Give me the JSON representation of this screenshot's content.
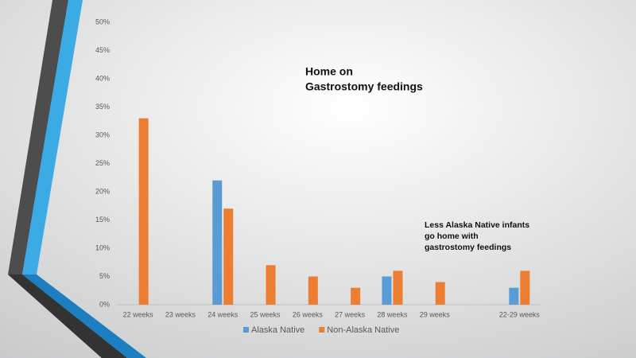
{
  "chart_data": {
    "type": "bar",
    "title": [
      "Home on",
      "Gastrostomy feedings"
    ],
    "annotation": [
      "Less Alaska Native infants",
      "go home with",
      "gastrostomy feedings"
    ],
    "categories": [
      "22 weeks",
      "23 weeks",
      "24 weeks",
      "25 weeks",
      "26 weeks",
      "27 weeks",
      "28 weeks",
      "29 weeks",
      null,
      "22-29 weeks"
    ],
    "series": [
      {
        "name": "Alaska Native",
        "color": "#5b9bd5",
        "values": [
          0,
          0,
          22,
          0,
          0,
          0,
          5,
          0,
          null,
          3
        ]
      },
      {
        "name": "Non-Alaska Native",
        "color": "#ed7d31",
        "values": [
          33,
          0,
          17,
          7,
          5,
          3,
          6,
          4,
          null,
          6
        ]
      }
    ],
    "ylim": [
      0,
      50
    ],
    "yticks": [
      {
        "value": 0,
        "label": "0%"
      },
      {
        "value": 5,
        "label": "5%"
      },
      {
        "value": 10,
        "label": "10%"
      },
      {
        "value": 15,
        "label": "15%"
      },
      {
        "value": 20,
        "label": "20%"
      },
      {
        "value": 25,
        "label": "25%"
      },
      {
        "value": 30,
        "label": "30%"
      },
      {
        "value": 35,
        "label": "35%"
      },
      {
        "value": 40,
        "label": "40%"
      },
      {
        "value": 45,
        "label": "45%"
      },
      {
        "value": 50,
        "label": "50%"
      }
    ],
    "grid": false,
    "legend": "bottom"
  }
}
